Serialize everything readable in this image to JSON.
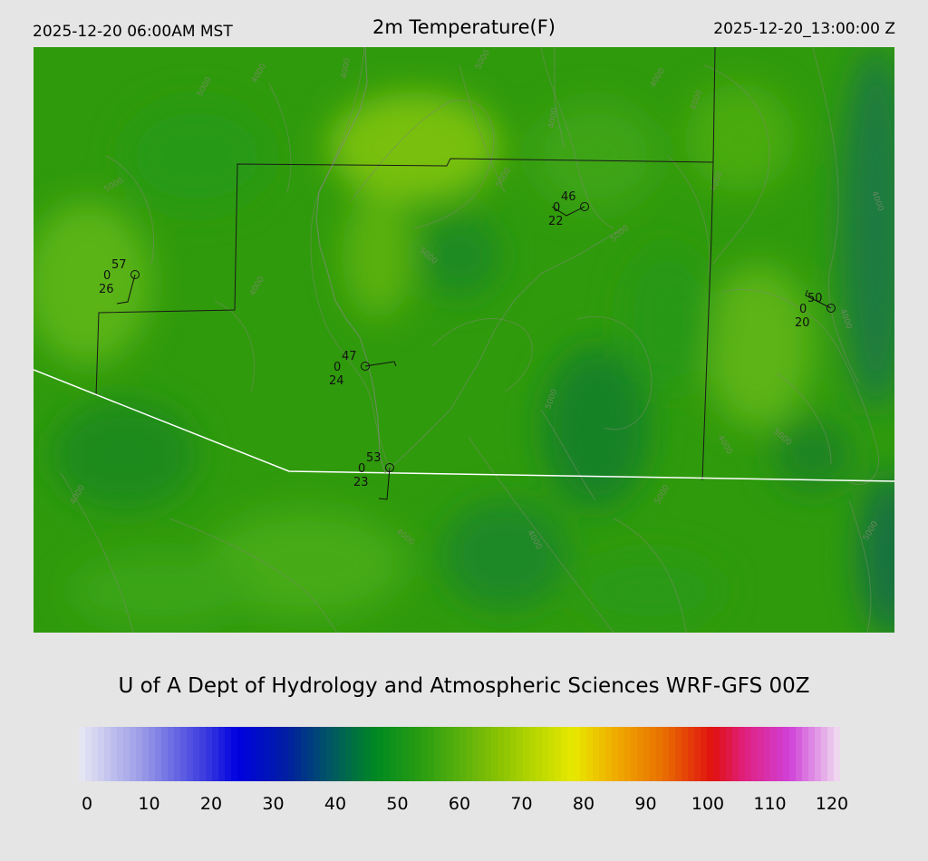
{
  "header": {
    "local_time": "2025-12-20 06:00AM MST",
    "title": "2m Temperature(F)",
    "valid_time": "2025-12-20_13:00:00 Z"
  },
  "credit": "U of A Dept of Hydrology and Atmospheric Sciences WRF-GFS 00Z",
  "colorbar": {
    "ticks": [
      "0",
      "10",
      "20",
      "30",
      "40",
      "50",
      "60",
      "70",
      "80",
      "90",
      "100",
      "110",
      "120"
    ],
    "stops": [
      {
        "v": 0,
        "c": "#e8e8f4"
      },
      {
        "v": 10,
        "c": "#9a9ae8"
      },
      {
        "v": 20,
        "c": "#3a3ae0"
      },
      {
        "v": 25,
        "c": "#0000e0"
      },
      {
        "v": 33,
        "c": "#0020a0"
      },
      {
        "v": 40,
        "c": "#005a60"
      },
      {
        "v": 47,
        "c": "#008a20"
      },
      {
        "v": 55,
        "c": "#30a010"
      },
      {
        "v": 63,
        "c": "#70b808"
      },
      {
        "v": 70,
        "c": "#a8d000"
      },
      {
        "v": 78,
        "c": "#e8e800"
      },
      {
        "v": 85,
        "c": "#f0a800"
      },
      {
        "v": 92,
        "c": "#e87000"
      },
      {
        "v": 100,
        "c": "#e01010"
      },
      {
        "v": 105,
        "c": "#e02080"
      },
      {
        "v": 112,
        "c": "#d040d8"
      },
      {
        "v": 120,
        "c": "#f0e0f0"
      }
    ]
  },
  "stations": [
    {
      "temp": "57",
      "cloud": "0",
      "dew": "26"
    },
    {
      "temp": "46",
      "cloud": "0",
      "dew": "22"
    },
    {
      "temp": "50",
      "cloud": "0",
      "dew": "20"
    },
    {
      "temp": "47",
      "cloud": "0",
      "dew": "24"
    },
    {
      "temp": "53",
      "cloud": "0",
      "dew": "23"
    }
  ],
  "contour_labels": [
    "5000",
    "4000",
    "4000",
    "5000",
    "4000",
    "4000",
    "4000",
    "5000",
    "5000",
    "5000",
    "4000",
    "5000",
    "4000",
    "5000",
    "4000",
    "5000",
    "4000",
    "4000",
    "4000",
    "5000",
    "4000",
    "4000",
    "5000"
  ]
}
